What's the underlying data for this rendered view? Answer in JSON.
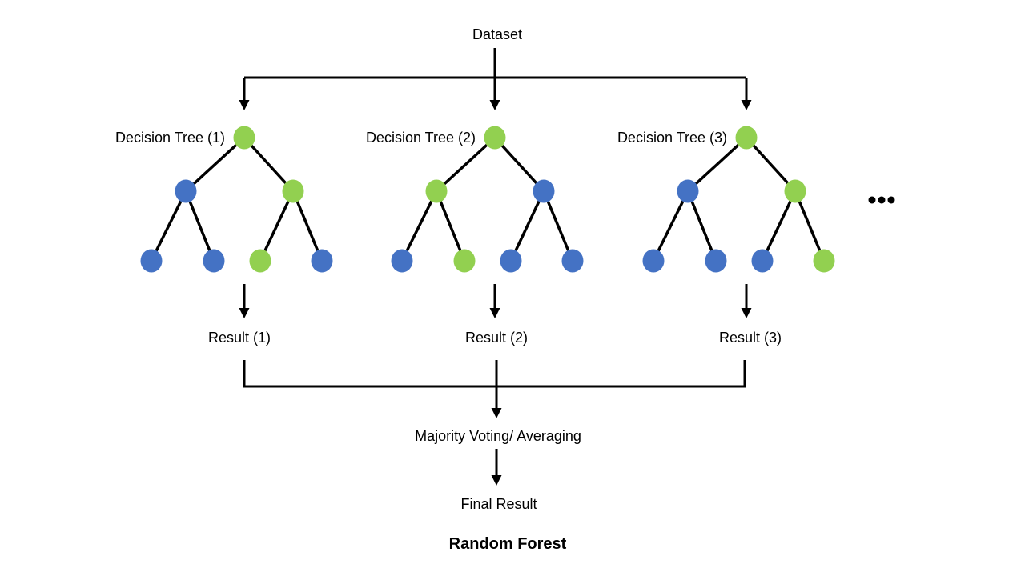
{
  "colors": {
    "node_green": "#92D050",
    "node_blue": "#4472C4",
    "line": "#000000",
    "text": "#000000",
    "background": "#ffffff"
  },
  "header": {
    "dataset_label": "Dataset"
  },
  "trees": [
    {
      "label": "Decision Tree (1)",
      "result_label": "Result (1)",
      "nodes": {
        "root": "green",
        "level2": [
          "blue",
          "green"
        ],
        "leaves": [
          "blue",
          "blue",
          "green",
          "blue"
        ]
      }
    },
    {
      "label": "Decision Tree (2)",
      "result_label": "Result (2)",
      "nodes": {
        "root": "green",
        "level2": [
          "green",
          "blue"
        ],
        "leaves": [
          "blue",
          "green",
          "blue",
          "blue"
        ]
      }
    },
    {
      "label": "Decision Tree (3)",
      "result_label": "Result (3)",
      "nodes": {
        "root": "green",
        "level2": [
          "blue",
          "green"
        ],
        "leaves": [
          "blue",
          "blue",
          "blue",
          "green"
        ]
      }
    }
  ],
  "ellipsis_label": "...",
  "aggregation": {
    "majority_label": "Majority Voting/ Averaging",
    "final_label": "Final Result"
  },
  "footer": {
    "title": "Random Forest"
  }
}
